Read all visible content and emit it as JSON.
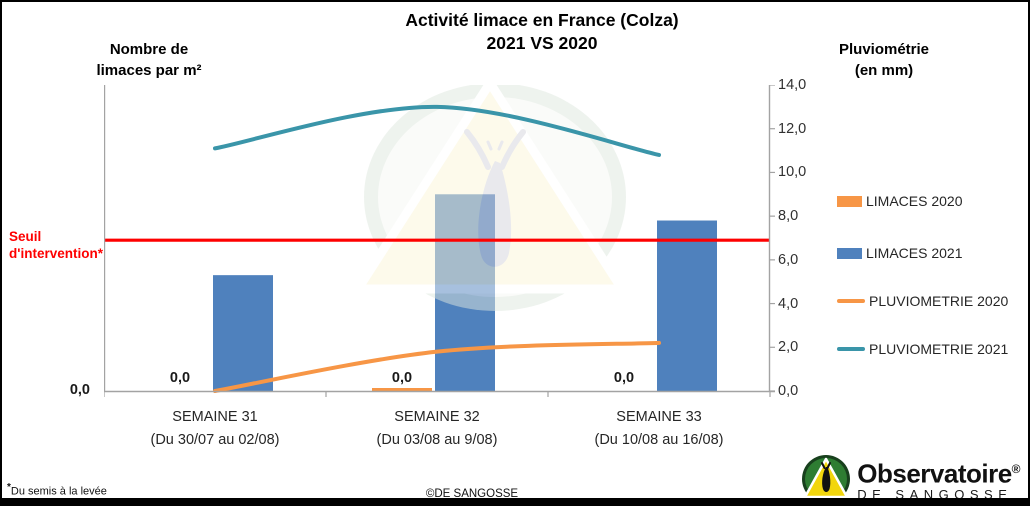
{
  "title": {
    "line1": "Activité limace en France (Colza)",
    "line2": "2021 VS 2020"
  },
  "left_axis": {
    "title_line1": "Nombre de",
    "title_line2": "limaces par m²",
    "zero_label": "0,0"
  },
  "right_axis": {
    "title_line1": "Pluviométrie",
    "title_line2": "(en mm)",
    "ticks": [
      "14,0",
      "12,0",
      "10,0",
      "8,0",
      "6,0",
      "4,0",
      "2,0",
      "0,0"
    ]
  },
  "threshold": {
    "label_line1": "Seuil",
    "label_line2": "d'intervention*"
  },
  "legend": [
    {
      "label": "LIMACES 2020",
      "swatch": "bar",
      "color": "#f79646"
    },
    {
      "label": "LIMACES 2021",
      "swatch": "bar",
      "color": "#4f81bd"
    },
    {
      "label": "PLUVIOMETRIE 2020",
      "swatch": "line",
      "color": "#f79646"
    },
    {
      "label": "PLUVIOMETRIE 2021",
      "swatch": "line",
      "color": "#3a95a9"
    }
  ],
  "x_axis": {
    "categories": [
      {
        "name": "SEMAINE 31",
        "range": "(Du 30/07 au 02/08)"
      },
      {
        "name": "SEMAINE 32",
        "range": "(Du 03/08 au 9/08)"
      },
      {
        "name": "SEMAINE 33",
        "range": "(Du 10/08 au 16/08)"
      }
    ]
  },
  "footer": {
    "star": "*",
    "note": "Du semis à la levée",
    "copyright": "©DE SANGOSSE"
  },
  "logo": {
    "name": "Observatoire",
    "reg": "®",
    "subtitle": "DE SANGOSSE"
  },
  "chart_data": {
    "type": "combo",
    "title": "Activité limace en France (Colza) 2021 VS 2020",
    "categories": [
      "SEMAINE 31 (Du 30/07 au 02/08)",
      "SEMAINE 32 (Du 03/08 au 9/08)",
      "SEMAINE 33 (Du 10/08 au 16/08)"
    ],
    "right_ylim": [
      0,
      14
    ],
    "right_tick_step": 2,
    "left_axis_labeled_only": "0,0",
    "series": [
      {
        "name": "LIMACES 2020",
        "type": "bar",
        "axis": "left",
        "color": "#f79646",
        "values": [
          0.0,
          0.0,
          0.0
        ],
        "data_labels": [
          "0,0",
          "0,0",
          "0,0"
        ],
        "zero_bar_segment_visible": [
          false,
          true,
          false
        ]
      },
      {
        "name": "LIMACES 2021",
        "type": "bar",
        "axis": "left",
        "color": "#4f81bd",
        "values": [
          5.3,
          9.0,
          7.8
        ]
      },
      {
        "name": "PLUVIOMETRIE 2020",
        "type": "line",
        "axis": "right",
        "color": "#f79646",
        "values": [
          0.0,
          1.8,
          2.2
        ]
      },
      {
        "name": "PLUVIOMETRIE 2021",
        "type": "line",
        "axis": "right",
        "color": "#3a95a9",
        "values": [
          11.1,
          13.0,
          10.8
        ]
      }
    ],
    "threshold_line": {
      "label": "Seuil d'intervention*",
      "value": 6.9,
      "color": "#fe0000"
    },
    "axis_color": "#a3a3a3"
  }
}
